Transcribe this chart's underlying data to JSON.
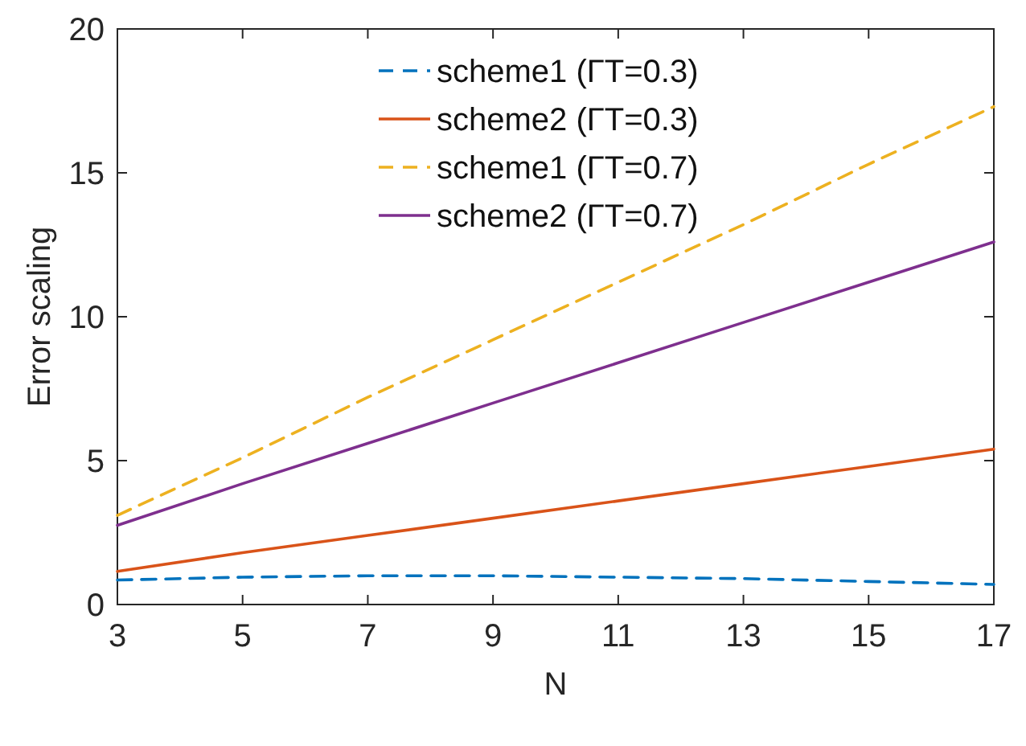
{
  "chart_data": {
    "type": "line",
    "xlabel": "N",
    "ylabel": "Error scaling",
    "x": [
      3,
      5,
      7,
      9,
      11,
      13,
      15,
      17
    ],
    "xlim": [
      3,
      17
    ],
    "xticks": [
      3,
      5,
      7,
      9,
      11,
      13,
      15,
      17
    ],
    "ylim": [
      0,
      20
    ],
    "yticks": [
      0,
      5,
      10,
      15,
      20
    ],
    "grid": false,
    "legend": "top",
    "series": [
      {
        "name": "scheme1 (ΓT=0.3)",
        "color": "#0072bd",
        "line_style": "dashed",
        "values": [
          0.85,
          0.95,
          1.0,
          1.0,
          0.95,
          0.9,
          0.8,
          0.7
        ]
      },
      {
        "name": "scheme2 (ΓT=0.3)",
        "color": "#d95319",
        "line_style": "solid",
        "values": [
          1.15,
          1.8,
          2.4,
          3.0,
          3.6,
          4.2,
          4.8,
          5.4
        ]
      },
      {
        "name": "scheme1 (ΓT=0.7)",
        "color": "#edb120",
        "line_style": "dashed",
        "values": [
          3.1,
          5.1,
          7.2,
          9.2,
          11.2,
          13.2,
          15.3,
          17.3
        ]
      },
      {
        "name": "scheme2 (ΓT=0.7)",
        "color": "#7e2f8e",
        "line_style": "solid",
        "values": [
          2.75,
          4.2,
          5.6,
          7.0,
          8.4,
          9.8,
          11.2,
          12.6
        ]
      }
    ]
  }
}
